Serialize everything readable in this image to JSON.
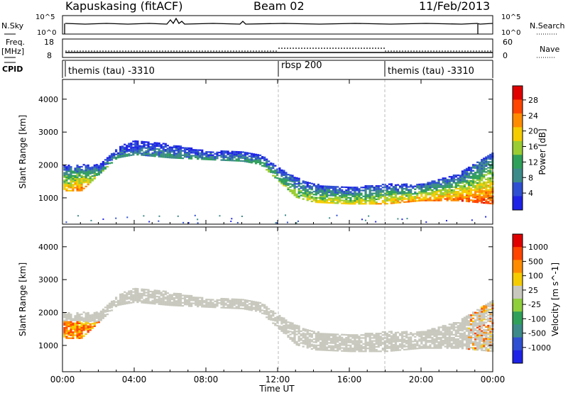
{
  "header": {
    "site": "Kapuskasing (fitACF)",
    "beam": "Beam 02",
    "date": "11/Feb/2013"
  },
  "strips": {
    "nsky_label": "N.Sky",
    "nsky_ticks": [
      "10^5",
      "10^0"
    ],
    "nsearch_label": "N.Search",
    "nsearch_ticks": [
      "10^5",
      "10^0"
    ],
    "freq_label": "Freq.",
    "freq_unit": "[MHz]",
    "freq_ticks": [
      "18",
      "8"
    ],
    "nave_label": "Nave",
    "nave_ticks": [
      "60",
      "0"
    ],
    "cpid_label": "CPID",
    "cpid_segments": [
      {
        "label": "themis (tau) -3310",
        "start_hr": 0
      },
      {
        "label": "rbsp 200",
        "start_hr": 12
      },
      {
        "label": "themis (tau) -3310",
        "start_hr": 18
      }
    ]
  },
  "colors": {
    "power_scale": [
      "#1e22e6",
      "#2f4fd2",
      "#3c8a8a",
      "#2fa05a",
      "#9acd32",
      "#f5cc00",
      "#ff8c00",
      "#ff4500",
      "#e00000"
    ],
    "velocity_scale": [
      "#1e22e6",
      "#2f4fd2",
      "#3c8a8a",
      "#2fa05a",
      "#8fcf3c",
      "#c8c8be",
      "#f5cc00",
      "#ff8c00",
      "#ff4500",
      "#e00000"
    ],
    "ground_scatter": "#c8c8be"
  },
  "chart_data": [
    {
      "type": "heatmap",
      "panel": "power",
      "ylabel": "Slant Range [km]",
      "colorbar_label": "Power [dB]",
      "colorbar_ticks": [
        "28",
        "24",
        "20",
        "16",
        "12",
        "8",
        "4"
      ],
      "colorbar_range": [
        0,
        30
      ],
      "ylim": [
        200,
        4600
      ],
      "yticks": [
        "4000",
        "3000",
        "2000",
        "1000"
      ],
      "ytick_values": [
        4000,
        3000,
        2000,
        1000
      ],
      "xlim": [
        0,
        24
      ],
      "grid": false,
      "approx_echo_band": {
        "time_hr": [
          0,
          1,
          2,
          3,
          4,
          6,
          8,
          10,
          11,
          12,
          13,
          14,
          16,
          18,
          20,
          22,
          24
        ],
        "range_top_km": [
          2000,
          2000,
          2000,
          2500,
          2750,
          2600,
          2400,
          2400,
          2300,
          1900,
          1600,
          1400,
          1300,
          1400,
          1400,
          1700,
          2400
        ],
        "range_bottom_km": [
          1200,
          1200,
          1700,
          2200,
          2300,
          2200,
          2150,
          2100,
          2000,
          1500,
          1000,
          850,
          800,
          800,
          900,
          900,
          800
        ],
        "peak_power_db": [
          20,
          24,
          12,
          10,
          8,
          10,
          10,
          10,
          12,
          14,
          16,
          18,
          18,
          20,
          22,
          24,
          26
        ]
      }
    },
    {
      "type": "heatmap",
      "panel": "velocity",
      "ylabel": "Slant Range [km]",
      "colorbar_label": "Velocity [m s^-1]",
      "colorbar_ticks": [
        "1000",
        "500",
        "100",
        "25",
        "-25",
        "-100",
        "-500",
        "-1000"
      ],
      "ylim": [
        200,
        4600
      ],
      "yticks": [
        "4000",
        "3000",
        "2000",
        "1000"
      ],
      "ytick_values": [
        4000,
        3000,
        2000,
        1000
      ],
      "xlim": [
        0,
        24
      ],
      "xticks": [
        "00:00",
        "04:00",
        "08:00",
        "12:00",
        "16:00",
        "20:00",
        "00:00"
      ],
      "xtick_values": [
        0,
        4,
        8,
        12,
        16,
        20,
        24
      ],
      "xlabel": "Time UT",
      "grid": false
    }
  ]
}
